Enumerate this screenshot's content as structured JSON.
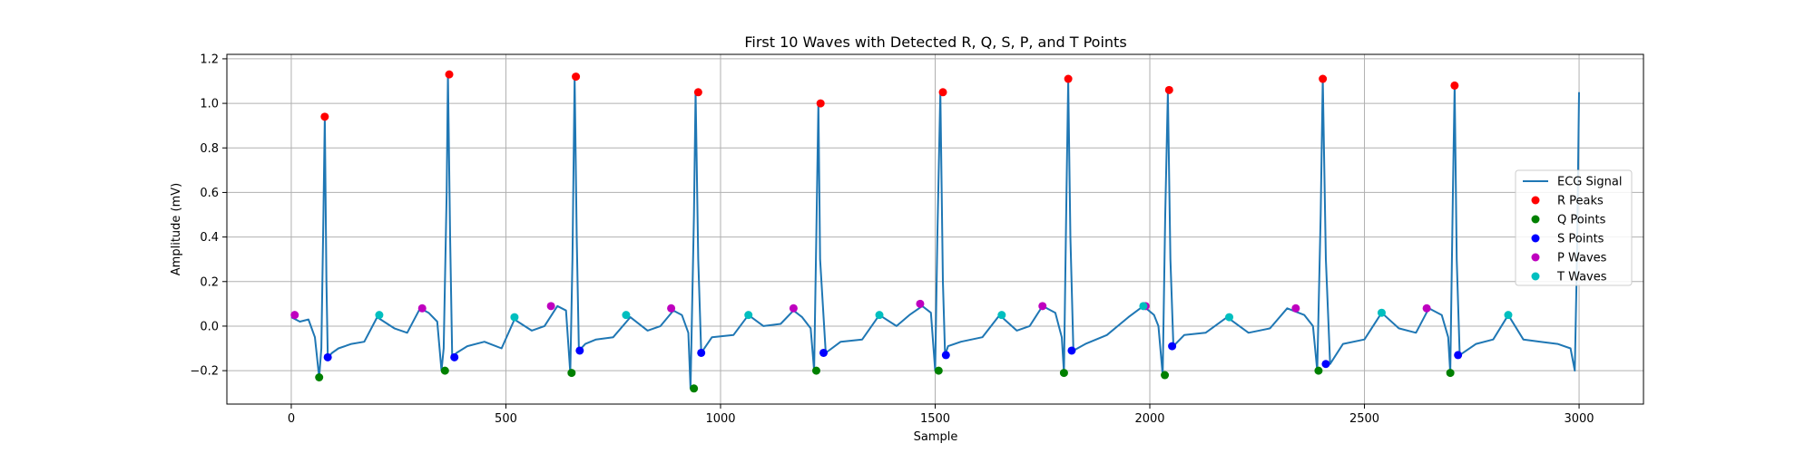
{
  "chart_data": {
    "type": "scatter",
    "title": "First 10 Waves with Detected R, Q, S, P, and T Points",
    "xlabel": "Sample",
    "ylabel": "Amplitude (mV)",
    "xlim": [
      -150,
      3150
    ],
    "ylim": [
      -0.35,
      1.22
    ],
    "xticks": [
      0,
      500,
      1000,
      1500,
      2000,
      2500,
      3000
    ],
    "yticks": [
      -0.2,
      0.0,
      0.2,
      0.4,
      0.6,
      0.8,
      1.0,
      1.2
    ],
    "xtick_labels": [
      "0",
      "500",
      "1000",
      "1500",
      "2000",
      "2500",
      "3000"
    ],
    "ytick_labels": [
      "−0.2",
      "0.0",
      "0.2",
      "0.4",
      "0.6",
      "0.8",
      "1.0",
      "1.2"
    ],
    "grid": true,
    "legend_position": "right",
    "series": [
      {
        "name": "ECG Signal",
        "kind": "line",
        "color": "#1f77b4",
        "x": [
          0,
          20,
          40,
          55,
          65,
          70,
          75,
          78,
          82,
          85,
          95,
          110,
          140,
          170,
          200,
          240,
          270,
          300,
          320,
          340,
          350,
          355,
          362,
          365,
          370,
          375,
          385,
          410,
          450,
          490,
          520,
          560,
          590,
          620,
          640,
          650,
          655,
          660,
          665,
          670,
          685,
          710,
          750,
          790,
          830,
          860,
          890,
          910,
          925,
          930,
          938,
          942,
          948,
          955,
          980,
          1030,
          1065,
          1100,
          1140,
          1170,
          1190,
          1210,
          1218,
          1223,
          1228,
          1232,
          1245,
          1280,
          1330,
          1370,
          1410,
          1440,
          1470,
          1490,
          1500,
          1505,
          1512,
          1518,
          1523,
          1530,
          1560,
          1610,
          1650,
          1690,
          1720,
          1750,
          1780,
          1795,
          1800,
          1806,
          1810,
          1815,
          1822,
          1850,
          1900,
          1950,
          1985,
          2010,
          2020,
          2030,
          2036,
          2042,
          2048,
          2055,
          2080,
          2130,
          2180,
          2230,
          2280,
          2320,
          2360,
          2380,
          2390,
          2398,
          2403,
          2410,
          2420,
          2450,
          2500,
          2540,
          2580,
          2620,
          2650,
          2680,
          2695,
          2700,
          2706,
          2710,
          2715,
          2722,
          2760,
          2800,
          2835,
          2870,
          2910,
          2950,
          2980,
          2990,
          2995,
          3000
        ],
        "y": [
          0.04,
          0.02,
          0.03,
          -0.05,
          -0.23,
          -0.1,
          0.5,
          0.94,
          0.2,
          -0.14,
          -0.12,
          -0.1,
          -0.08,
          -0.07,
          0.04,
          -0.01,
          -0.03,
          0.08,
          0.06,
          0.02,
          -0.2,
          -0.1,
          0.6,
          1.13,
          0.4,
          -0.14,
          -0.12,
          -0.09,
          -0.07,
          -0.1,
          0.03,
          -0.02,
          0.0,
          0.09,
          0.07,
          -0.21,
          0.3,
          1.12,
          0.4,
          -0.11,
          -0.08,
          -0.06,
          -0.05,
          0.04,
          -0.02,
          0.0,
          0.07,
          0.05,
          -0.03,
          -0.28,
          0.5,
          1.05,
          0.3,
          -0.12,
          -0.05,
          -0.04,
          0.05,
          0.0,
          0.01,
          0.07,
          0.04,
          -0.01,
          -0.2,
          0.4,
          1.0,
          0.3,
          -0.12,
          -0.07,
          -0.06,
          0.05,
          0.0,
          0.05,
          0.09,
          0.06,
          -0.2,
          0.4,
          1.05,
          0.2,
          -0.13,
          -0.09,
          -0.07,
          -0.05,
          0.05,
          -0.02,
          0.0,
          0.09,
          0.06,
          -0.05,
          -0.21,
          0.6,
          1.1,
          0.4,
          -0.11,
          -0.08,
          -0.04,
          0.04,
          0.09,
          0.05,
          0.0,
          -0.22,
          0.5,
          1.05,
          0.3,
          -0.09,
          -0.04,
          -0.03,
          0.04,
          -0.03,
          -0.01,
          0.08,
          0.05,
          0.0,
          -0.2,
          0.5,
          1.11,
          0.3,
          -0.17,
          -0.08,
          -0.06,
          0.06,
          -0.01,
          -0.03,
          0.08,
          0.05,
          -0.05,
          -0.21,
          0.6,
          1.08,
          0.3,
          -0.13,
          -0.08,
          -0.06,
          0.05,
          -0.06,
          -0.07,
          -0.08,
          -0.1,
          -0.2,
          0.3,
          1.05
        ]
      },
      {
        "name": "R Peaks",
        "kind": "scatter",
        "color": "#ff0000",
        "x": [
          78,
          368,
          663,
          948,
          1233,
          1518,
          1810,
          2045,
          2403,
          2710
        ],
        "y": [
          0.94,
          1.13,
          1.12,
          1.05,
          1.0,
          1.05,
          1.11,
          1.06,
          1.11,
          1.08
        ]
      },
      {
        "name": "Q Points",
        "kind": "scatter",
        "color": "#008000",
        "x": [
          65,
          358,
          653,
          938,
          1223,
          1508,
          1800,
          2035,
          2393,
          2700
        ],
        "y": [
          -0.23,
          -0.2,
          -0.21,
          -0.28,
          -0.2,
          -0.2,
          -0.21,
          -0.22,
          -0.2,
          -0.21
        ]
      },
      {
        "name": "S Points",
        "kind": "scatter",
        "color": "#0000ff",
        "x": [
          85,
          380,
          672,
          955,
          1240,
          1525,
          1818,
          2052,
          2410,
          2718
        ],
        "y": [
          -0.14,
          -0.14,
          -0.11,
          -0.12,
          -0.12,
          -0.13,
          -0.11,
          -0.09,
          -0.17,
          -0.13
        ]
      },
      {
        "name": "P Waves",
        "kind": "scatter",
        "color": "#bf00bf",
        "x": [
          8,
          305,
          605,
          885,
          1170,
          1465,
          1750,
          1990,
          2340,
          2645
        ],
        "y": [
          0.05,
          0.08,
          0.09,
          0.08,
          0.08,
          0.1,
          0.09,
          0.09,
          0.08,
          0.08
        ]
      },
      {
        "name": "T Waves",
        "kind": "scatter",
        "color": "#00bfbf",
        "x": [
          205,
          520,
          780,
          1065,
          1370,
          1655,
          1985,
          2185,
          2540,
          2835
        ],
        "y": [
          0.05,
          0.04,
          0.05,
          0.05,
          0.05,
          0.05,
          0.09,
          0.04,
          0.06,
          0.05
        ]
      }
    ]
  }
}
